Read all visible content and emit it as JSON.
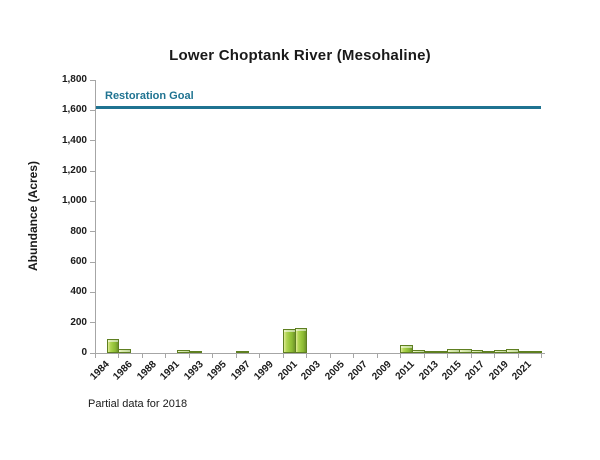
{
  "header": {
    "title": "Lower Choptank River (Mesohaline)"
  },
  "footnote": "Partial data for 2018",
  "colors": {
    "bar_fill": "#9bc83e",
    "bar_fill_highlight": "#e0ec96",
    "bar_border": "#5e7f21",
    "goal_line": "#1f7391",
    "axis": "#a6a6a6",
    "text": "#1a1a1a"
  },
  "chart_data": {
    "type": "bar",
    "title": "Lower Choptank River (Mesohaline)",
    "xlabel": "",
    "ylabel": "Abundance (Acres)",
    "ylim": [
      0,
      1800
    ],
    "ytick_interval": 200,
    "ytick_labels": [
      "0",
      "200",
      "400",
      "600",
      "800",
      "1,000",
      "1,200",
      "1,400",
      "1,600",
      "1,800"
    ],
    "grid": false,
    "legend_position": "none",
    "categories": [
      1984,
      1985,
      1986,
      1987,
      1988,
      1990,
      1991,
      1992,
      1993,
      1994,
      1995,
      1996,
      1997,
      1998,
      1999,
      2000,
      2001,
      2002,
      2003,
      2004,
      2005,
      2006,
      2007,
      2008,
      2009,
      2010,
      2011,
      2012,
      2013,
      2014,
      2015,
      2016,
      2017,
      2018,
      2019,
      2020,
      2021,
      2022
    ],
    "values": [
      0,
      92,
      26,
      0,
      0,
      0,
      0,
      18,
      16,
      0,
      0,
      0,
      8,
      0,
      0,
      0,
      158,
      168,
      0,
      0,
      0,
      0,
      0,
      0,
      0,
      0,
      55,
      20,
      4,
      13,
      28,
      26,
      20,
      5,
      22,
      24,
      8,
      5
    ],
    "x_tick_labels": [
      "1984",
      "1986",
      "1988",
      "1991",
      "1993",
      "1995",
      "1997",
      "1999",
      "2001",
      "2003",
      "2005",
      "2007",
      "2009",
      "2011",
      "2013",
      "2015",
      "2017",
      "2019",
      "2021"
    ],
    "x_label_every": 2,
    "reference_line": {
      "label": "Restoration Goal",
      "value": 1620
    },
    "annotations": [
      "Partial data for 2018"
    ]
  }
}
